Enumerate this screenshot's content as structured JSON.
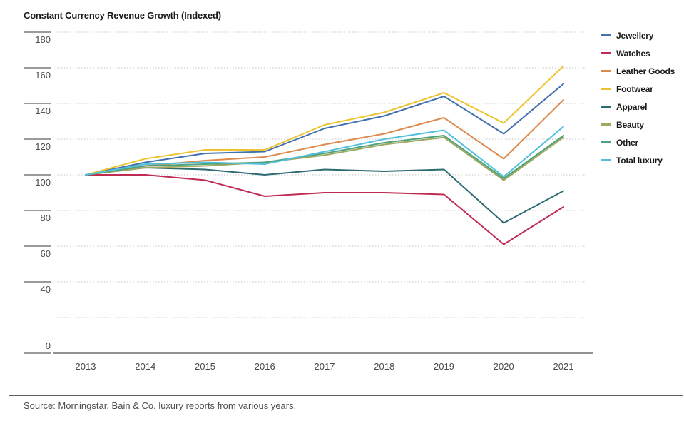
{
  "title": "Constant Currency Revenue Growth (Indexed)",
  "source": "Source: Morningstar, Bain & Co. luxury reports from various years.",
  "chart_data": {
    "type": "line",
    "title": "Constant Currency Revenue Growth (Indexed)",
    "xlabel": "",
    "ylabel": "",
    "grid": "horizontal-dotted",
    "legend_position": "right",
    "x": [
      2013,
      2014,
      2015,
      2016,
      2017,
      2018,
      2019,
      2020,
      2021
    ],
    "ylim": [
      0,
      180
    ],
    "ytick_step": 20,
    "ytick_labels_shown": [
      0,
      40,
      60,
      80,
      100,
      120,
      140,
      160,
      180
    ],
    "series": [
      {
        "name": "Jewellery",
        "color": "#4470ad",
        "values": [
          100,
          107,
          112,
          113,
          126,
          133,
          144,
          123,
          151
        ]
      },
      {
        "name": "Watches",
        "color": "#bf2b52",
        "values": [
          100,
          100,
          97,
          88,
          90,
          90,
          89,
          61,
          82
        ]
      },
      {
        "name": "Leather Goods",
        "color": "#dd8a4e",
        "values": [
          100,
          105,
          108,
          110,
          117,
          123,
          132,
          109,
          142
        ]
      },
      {
        "name": "Footwear",
        "color": "#ecc431",
        "values": [
          100,
          109,
          114,
          114,
          128,
          135,
          146,
          129,
          161
        ]
      },
      {
        "name": "Apparel",
        "color": "#2b6a70",
        "values": [
          100,
          104,
          103,
          100,
          103,
          102,
          103,
          73,
          91
        ]
      },
      {
        "name": "Beauty",
        "color": "#9fa85f",
        "values": [
          100,
          104,
          105,
          107,
          111,
          117,
          121,
          97,
          121
        ]
      },
      {
        "name": "Other",
        "color": "#4fa27b",
        "values": [
          100,
          105,
          106,
          107,
          112,
          118,
          122,
          98,
          122
        ]
      },
      {
        "name": "Total luxury",
        "color": "#52c0dc",
        "values": [
          100,
          106,
          107,
          106,
          113,
          120,
          125,
          99,
          127
        ]
      }
    ]
  }
}
